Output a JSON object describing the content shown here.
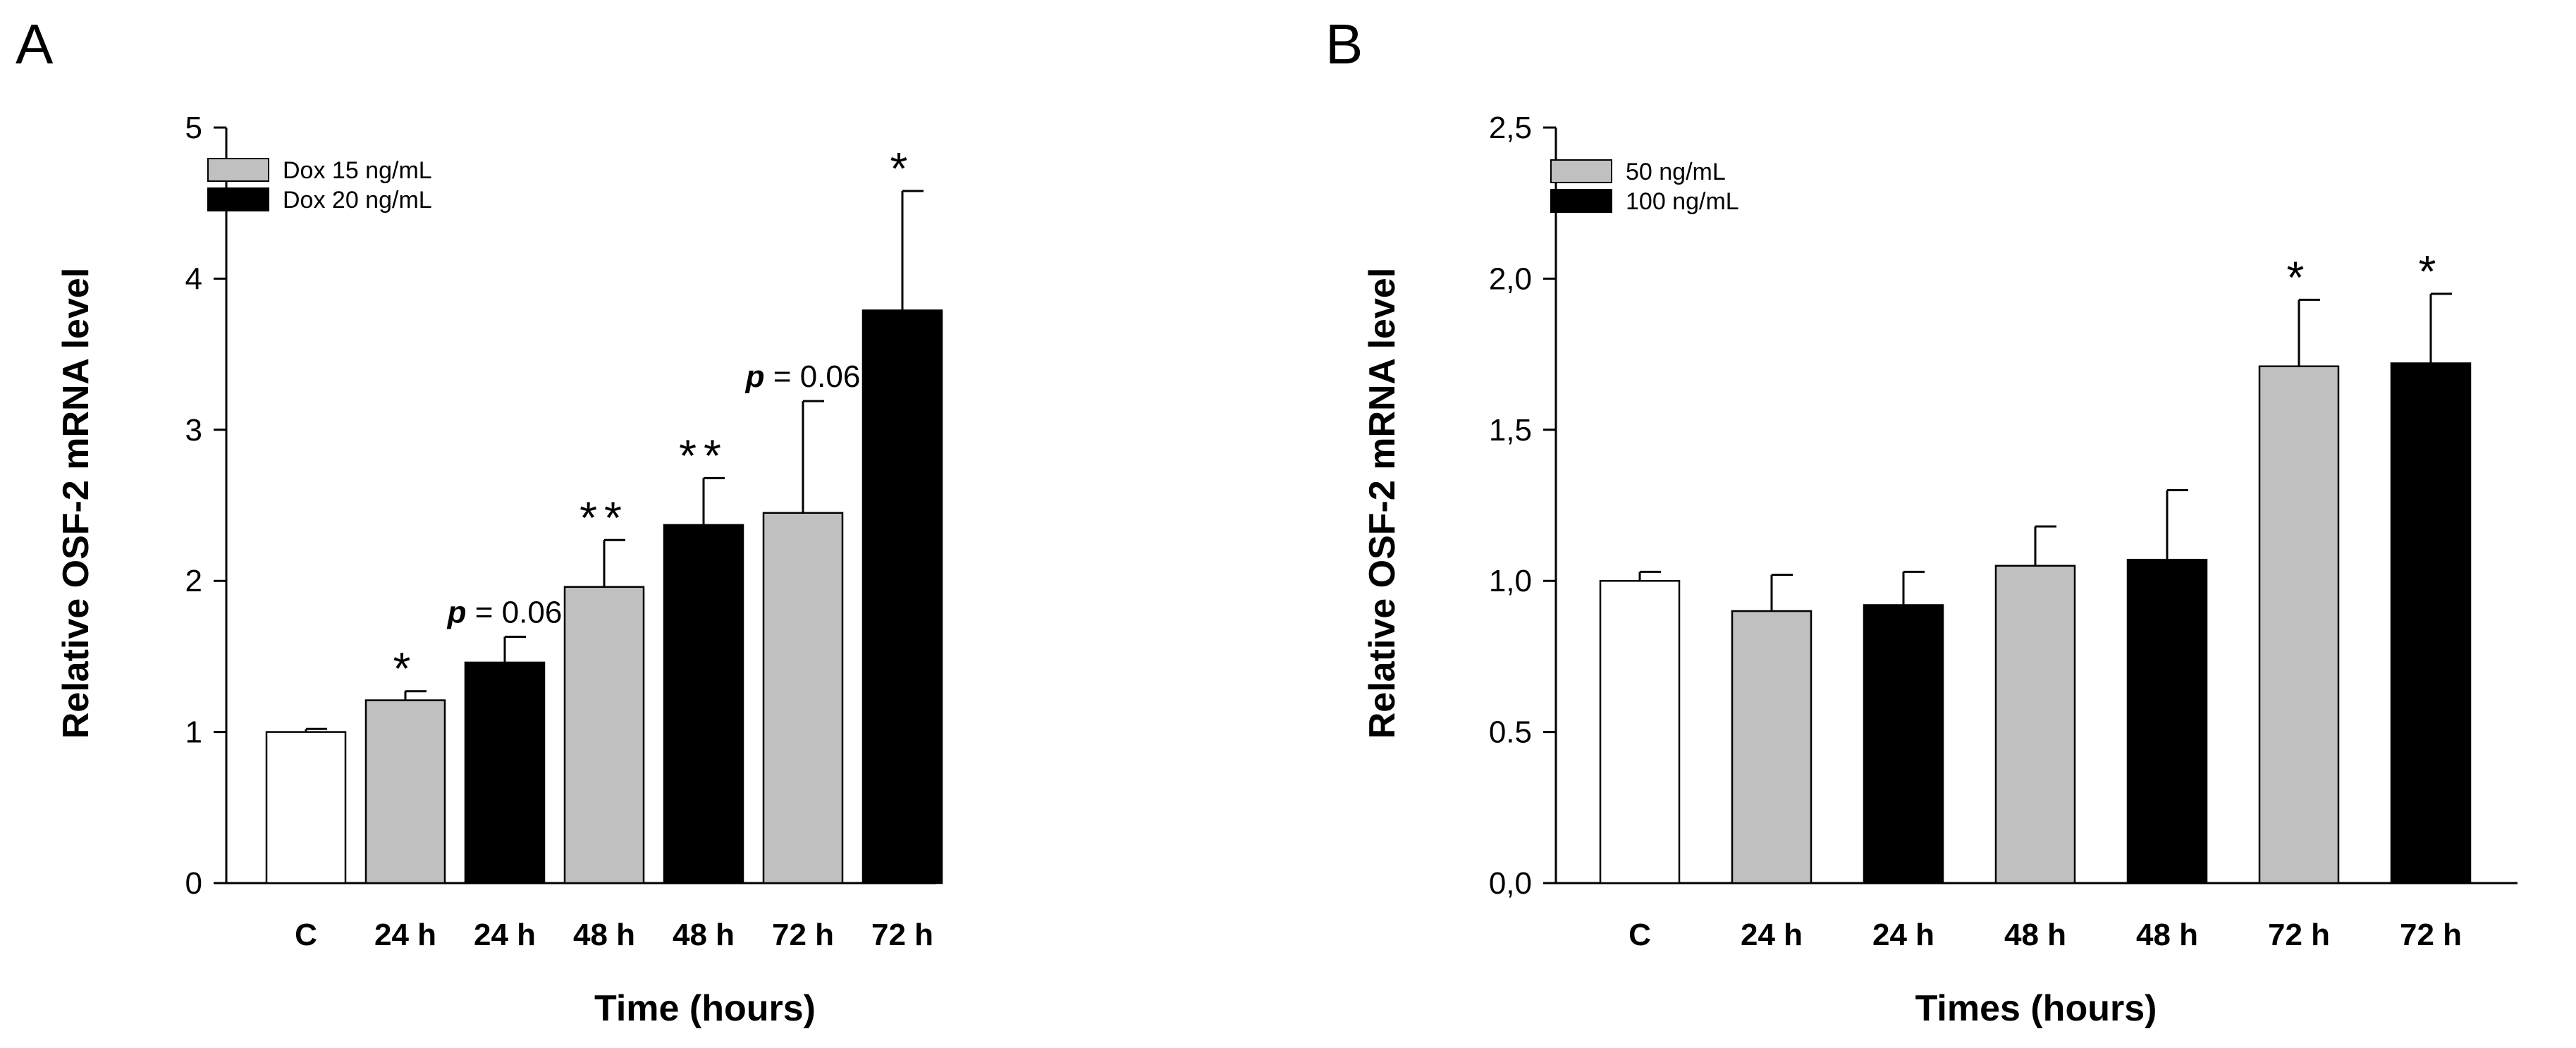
{
  "chart_data": [
    {
      "panel": "A",
      "type": "bar",
      "title": "",
      "xlabel": "Time (hours)",
      "ylabel": "Relative OSF-2 mRNA level",
      "ylim": [
        0,
        5
      ],
      "yticks": [
        0,
        1,
        2,
        3,
        4,
        5
      ],
      "ytick_labels": [
        "0",
        "1",
        "2",
        "3",
        "4",
        "5"
      ],
      "categories": [
        "C",
        "24 h",
        "24 h",
        "48 h",
        "48 h",
        "72 h",
        "72 h"
      ],
      "values": [
        1.0,
        1.21,
        1.46,
        1.96,
        2.37,
        2.45,
        3.79
      ],
      "errors": [
        0.02,
        0.06,
        0.17,
        0.31,
        0.31,
        0.74,
        0.79
      ],
      "groups": [
        "control",
        "low",
        "high",
        "low",
        "high",
        "low",
        "high"
      ],
      "annotations": [
        "",
        "*",
        "p = 0.06",
        "**",
        "**",
        "p = 0.06",
        "*"
      ],
      "legend": [
        {
          "group": "low",
          "label": "Dox 15 ng/mL",
          "color": "#c0c0c0"
        },
        {
          "group": "high",
          "label": "Dox 20 ng/mL",
          "color": "#000000"
        }
      ],
      "legend_position": "top-left"
    },
    {
      "panel": "B",
      "type": "bar",
      "title": "",
      "xlabel": "Times (hours)",
      "ylabel": "Relative OSF-2 mRNA level",
      "ylim": [
        0,
        2.5
      ],
      "yticks": [
        0,
        0.5,
        1.0,
        1.5,
        2.0,
        2.5
      ],
      "ytick_labels": [
        "0,0",
        "0.5",
        "1,0",
        "1,5",
        "2,0",
        "2,5"
      ],
      "categories": [
        "C",
        "24 h",
        "24 h",
        "48 h",
        "48 h",
        "72 h",
        "72 h"
      ],
      "values": [
        1.0,
        0.9,
        0.92,
        1.05,
        1.07,
        1.71,
        1.72
      ],
      "errors": [
        0.03,
        0.12,
        0.11,
        0.13,
        0.23,
        0.22,
        0.23
      ],
      "groups": [
        "control",
        "low",
        "high",
        "low",
        "high",
        "low",
        "high"
      ],
      "annotations": [
        "",
        "",
        "",
        "",
        "",
        "*",
        "*"
      ],
      "legend": [
        {
          "group": "low",
          "label": "50 ng/mL",
          "color": "#c0c0c0"
        },
        {
          "group": "high",
          "label": "100 ng/mL",
          "color": "#000000"
        }
      ],
      "legend_position": "top-left"
    }
  ],
  "colors": {
    "control": "#ffffff",
    "low": "#c0c0c0",
    "high": "#000000"
  }
}
